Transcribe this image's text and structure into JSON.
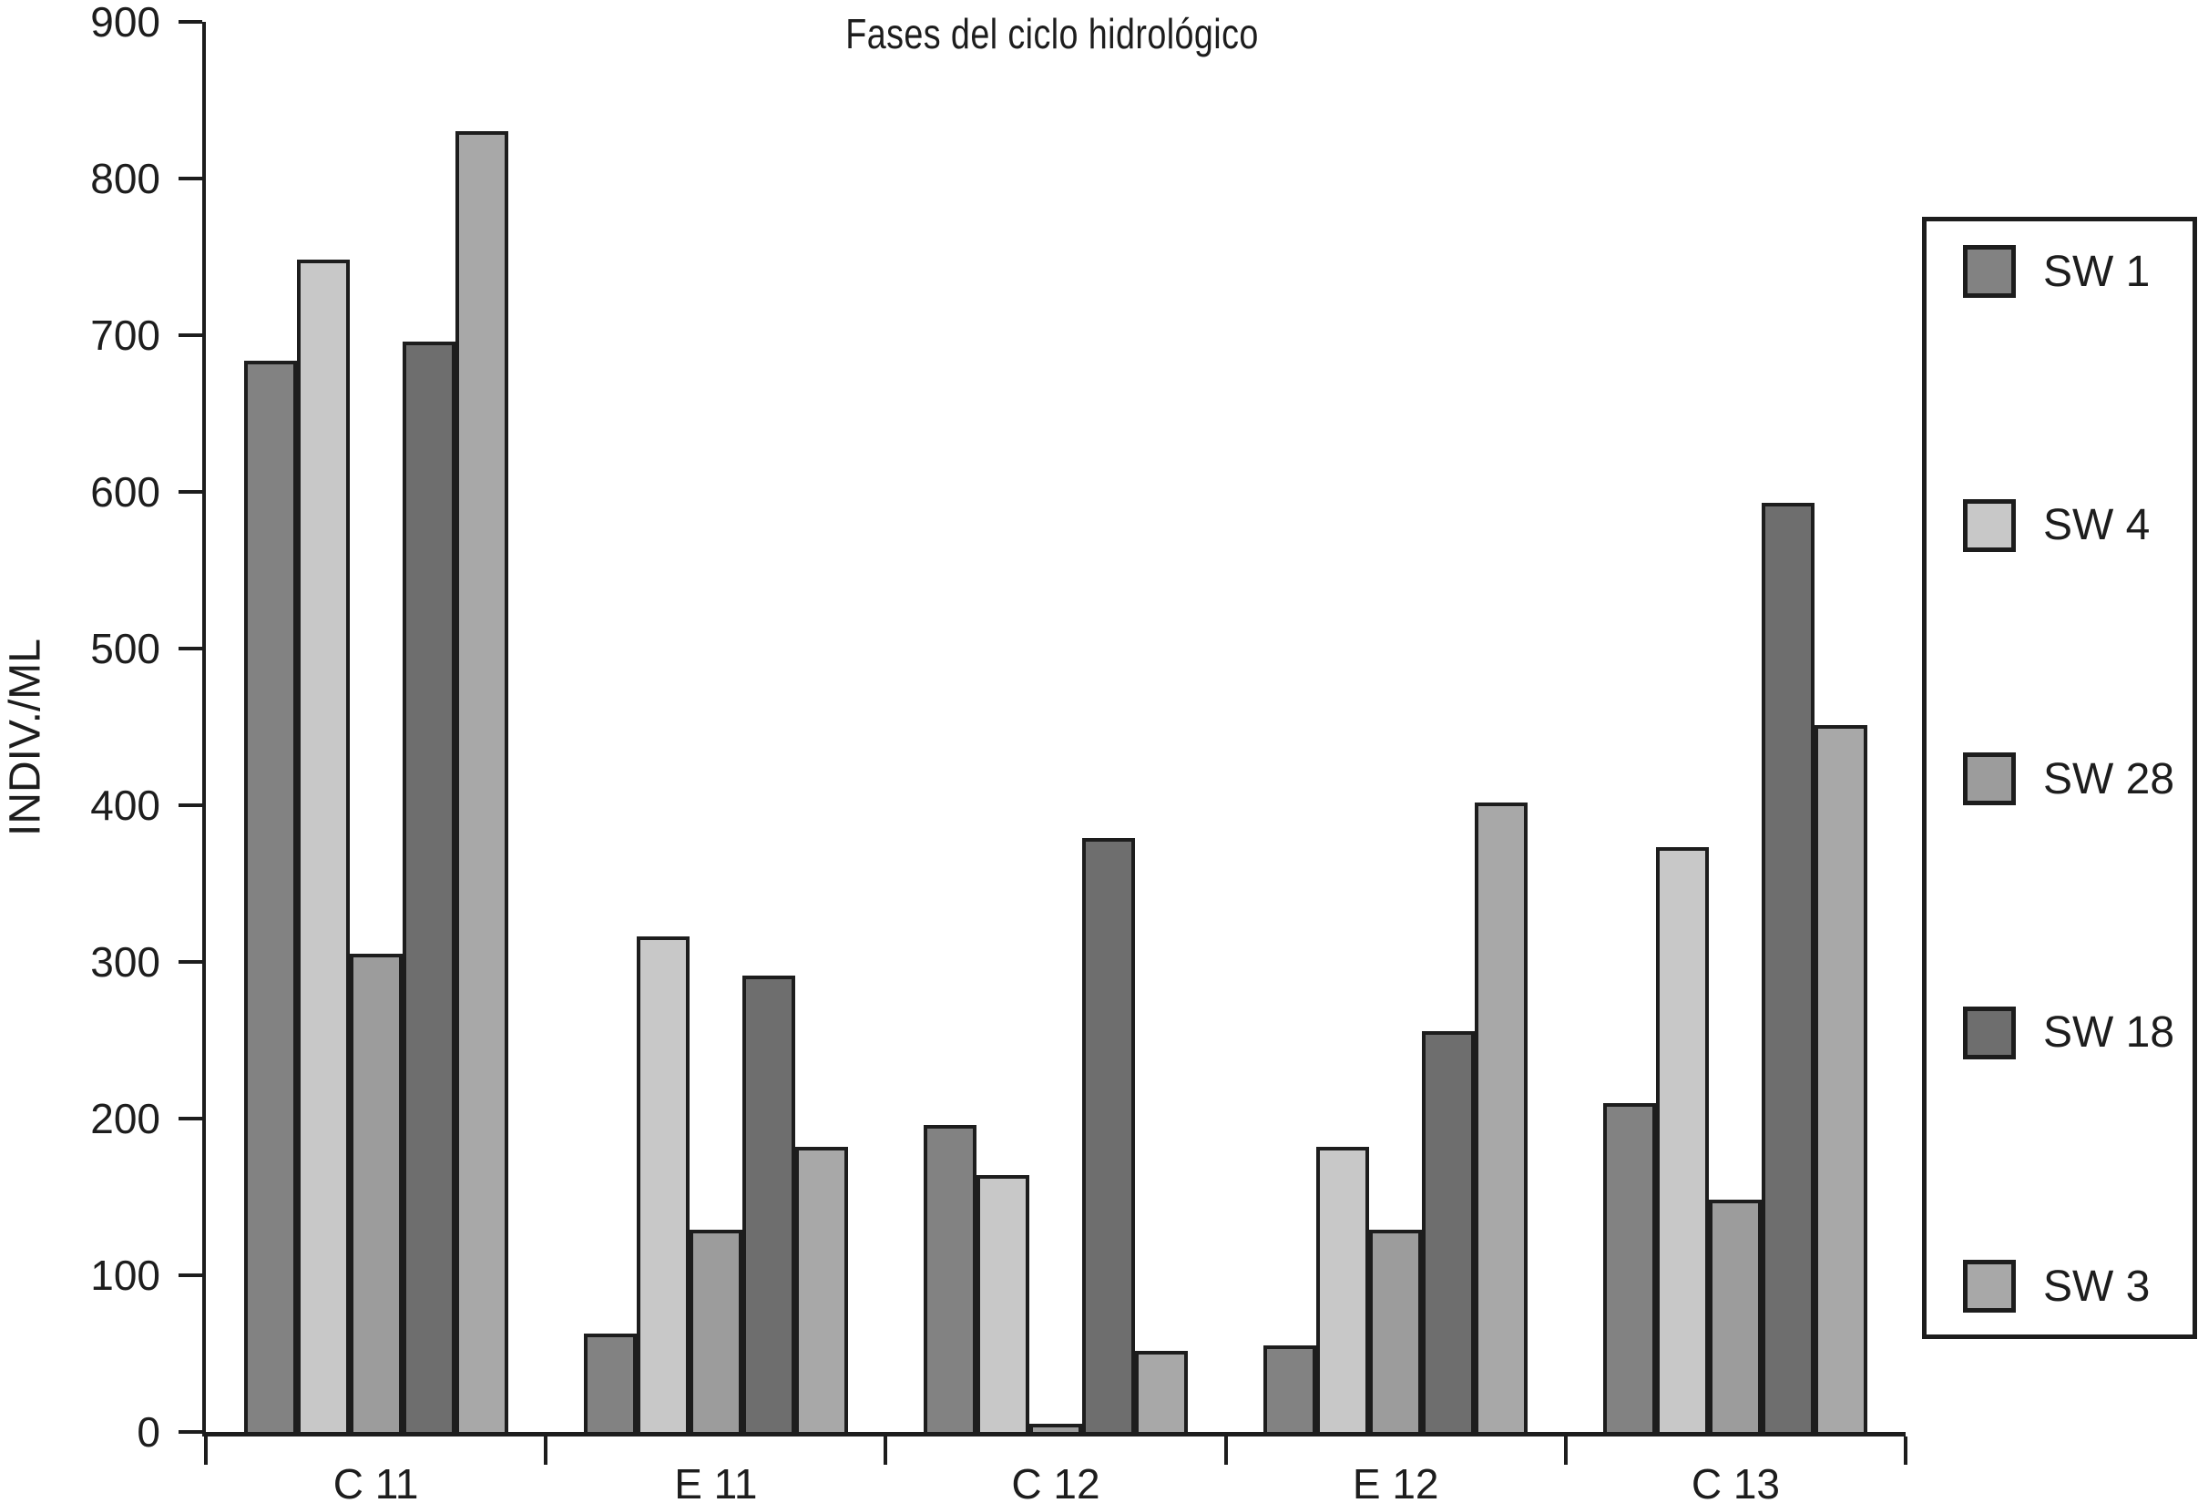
{
  "title": "Fases del ciclo hidrológico",
  "y_axis": {
    "label": "INDIV./ML",
    "tick_values": [
      900,
      800,
      700,
      600,
      500,
      400,
      300,
      200,
      100,
      0
    ]
  },
  "x_axis": {
    "categories": [
      "C 11",
      "E 11",
      "C 12",
      "E 12",
      "C 13"
    ]
  },
  "legend": {
    "entries": [
      {
        "label": "SW 1",
        "color": "#828282"
      },
      {
        "label": "SW 4",
        "color": "#c8c8c8"
      },
      {
        "label": "SW 28",
        "color": "#9c9c9c"
      },
      {
        "label": "SW 18",
        "color": "#6e6e6e"
      },
      {
        "label": "SW 3",
        "color": "#a8a8a8"
      }
    ]
  },
  "chart_data": {
    "type": "bar",
    "title": "Fases del ciclo hidrológico",
    "xlabel": "",
    "ylabel": "INDIV./ML",
    "ylim": [
      0,
      900
    ],
    "grid": false,
    "legend_position": "right",
    "bar_outline_color": "#1d1d1d",
    "categories": [
      "C 11",
      "E 11",
      "C 12",
      "E 12",
      "C 13"
    ],
    "series": [
      {
        "name": "SW 1",
        "color": "#828282",
        "values": [
          684,
          63,
          196,
          55,
          210
        ]
      },
      {
        "name": "SW 4",
        "color": "#c8c8c8",
        "values": [
          748,
          316,
          164,
          182,
          373
        ]
      },
      {
        "name": "SW 28",
        "color": "#9c9c9c",
        "values": [
          305,
          129,
          5,
          129,
          148
        ]
      },
      {
        "name": "SW 18",
        "color": "#6e6e6e",
        "values": [
          696,
          291,
          379,
          256,
          593
        ]
      },
      {
        "name": "SW 3",
        "color": "#a8a8a8",
        "values": [
          830,
          182,
          52,
          402,
          451
        ]
      }
    ]
  }
}
